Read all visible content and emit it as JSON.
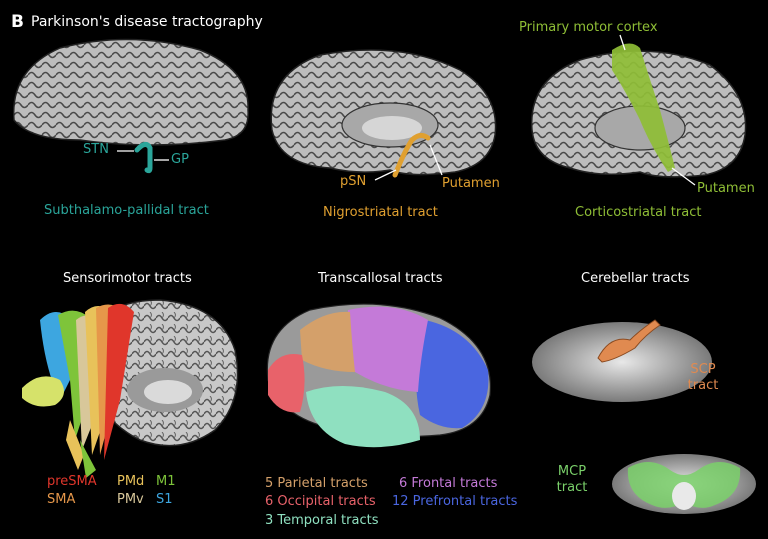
{
  "panel": {
    "letter": "B",
    "title": "Parkinson's disease tractography"
  },
  "top_row": {
    "subthalamo": {
      "stn": "STN",
      "gp": "GP",
      "caption": "Subthalamo-pallidal tract"
    },
    "nigrostriatal": {
      "psn": "pSN",
      "putamen": "Putamen",
      "caption": "Nigrostriatal tract"
    },
    "corticostriatal": {
      "motor": "Primary motor cortex",
      "putamen": "Putamen",
      "caption": "Corticostriatal tract"
    }
  },
  "bottom_row": {
    "sensorimotor": {
      "title": "Sensorimotor tracts",
      "legend": [
        {
          "label": "preSMA",
          "color": "#e0362b"
        },
        {
          "label": "PMd",
          "color": "#e8c25a"
        },
        {
          "label": "M1",
          "color": "#7ec43a"
        },
        {
          "label": "SMA",
          "color": "#e6974a"
        },
        {
          "label": "PMv",
          "color": "#d8c79a"
        },
        {
          "label": "S1",
          "color": "#3da6e0"
        }
      ]
    },
    "transcallosal": {
      "title": "Transcallosal tracts",
      "legend": [
        {
          "label": "5 Parietal tracts",
          "color": "#d4a06a"
        },
        {
          "label": "6 Frontal tracts",
          "color": "#c47ad8"
        },
        {
          "label": "6 Occipital tracts",
          "color": "#e8626a"
        },
        {
          "label": "12 Prefrontal tracts",
          "color": "#4a66e0"
        },
        {
          "label": "3 Temporal tracts",
          "color": "#8fe0c0"
        }
      ]
    },
    "cerebellar": {
      "title": "Cerebellar tracts",
      "scp": "SCP tract",
      "mcp": "MCP tract"
    }
  },
  "colors": {
    "teal": "#2aa59a",
    "orange": "#e0a030",
    "green": "#8fbe36",
    "scp": "#e08a50",
    "mcp": "#7ad06a"
  }
}
